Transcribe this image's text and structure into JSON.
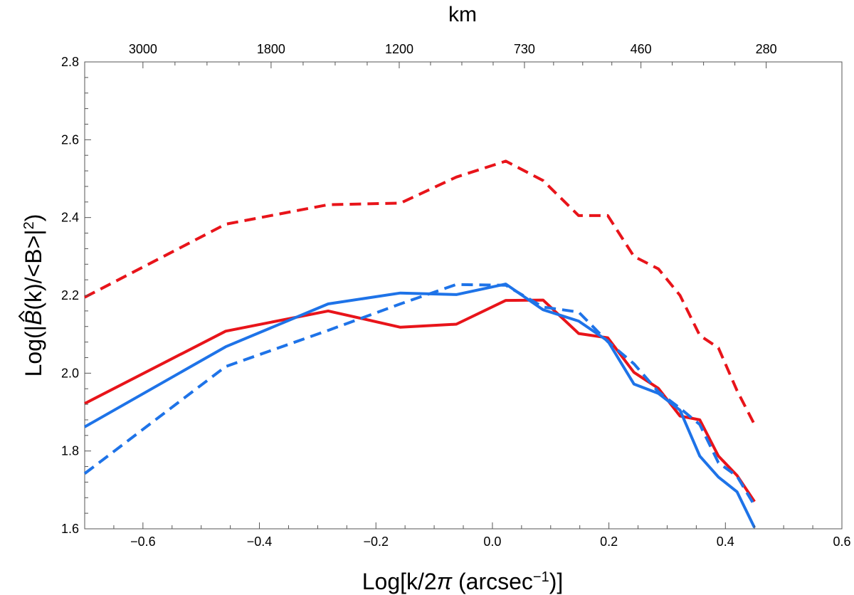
{
  "chart_data": {
    "type": "line",
    "xlabel_parts": {
      "prefix": "Log[k/2",
      "pi": "π",
      "mid": " (arcsec",
      "sup": "−1",
      "suffix": ")]"
    },
    "ylabel_parts": {
      "prefix": "Log(|",
      "hat_symbol": "B",
      "mid": "(k)/<B>|",
      "sup": "2",
      "suffix": ")"
    },
    "top_axis_label": "km",
    "xlim": [
      -0.7,
      0.6
    ],
    "ylim": [
      1.6,
      2.8
    ],
    "x_ticks": [
      -0.6,
      -0.4,
      -0.2,
      0.0,
      0.2,
      0.4,
      0.6
    ],
    "x_tick_labels": [
      "−0.6",
      "−0.4",
      "−0.2",
      "0.0",
      "0.2",
      "0.4",
      "0.6"
    ],
    "y_ticks": [
      1.6,
      1.8,
      2.0,
      2.2,
      2.4,
      2.6,
      2.8
    ],
    "y_tick_labels": [
      "1.6",
      "1.8",
      "2.0",
      "2.2",
      "2.4",
      "2.6",
      "2.8"
    ],
    "top_ticks": [
      {
        "label": "3000",
        "x": -0.6
      },
      {
        "label": "1800",
        "x": -0.38
      },
      {
        "label": "1200",
        "x": -0.16
      },
      {
        "label": "730",
        "x": 0.055
      },
      {
        "label": "460",
        "x": 0.255
      },
      {
        "label": "280",
        "x": 0.47
      }
    ],
    "grid": false,
    "series": [
      {
        "color": "#e8141a",
        "dashed": true,
        "points": [
          [
            -0.7,
            2.195
          ],
          [
            -0.458,
            2.383
          ],
          [
            -0.282,
            2.433
          ],
          [
            -0.158,
            2.437
          ],
          [
            -0.062,
            2.504
          ],
          [
            0.023,
            2.545
          ],
          [
            0.087,
            2.495
          ],
          [
            0.148,
            2.405
          ],
          [
            0.198,
            2.405
          ],
          [
            0.243,
            2.3
          ],
          [
            0.285,
            2.268
          ],
          [
            0.322,
            2.2
          ],
          [
            0.356,
            2.097
          ],
          [
            0.388,
            2.065
          ],
          [
            0.42,
            1.955
          ],
          [
            0.45,
            1.868
          ]
        ]
      },
      {
        "color": "#e8141a",
        "dashed": false,
        "points": [
          [
            -0.7,
            1.922
          ],
          [
            -0.458,
            2.108
          ],
          [
            -0.282,
            2.16
          ],
          [
            -0.158,
            2.118
          ],
          [
            -0.062,
            2.126
          ],
          [
            0.023,
            2.187
          ],
          [
            0.087,
            2.188
          ],
          [
            0.148,
            2.102
          ],
          [
            0.198,
            2.091
          ],
          [
            0.243,
            2.002
          ],
          [
            0.285,
            1.961
          ],
          [
            0.322,
            1.89
          ],
          [
            0.356,
            1.88
          ],
          [
            0.388,
            1.787
          ],
          [
            0.42,
            1.737
          ],
          [
            0.45,
            1.67
          ]
        ]
      },
      {
        "color": "#1e73e8",
        "dashed": false,
        "points": [
          [
            -0.7,
            1.862
          ],
          [
            -0.458,
            2.068
          ],
          [
            -0.282,
            2.178
          ],
          [
            -0.158,
            2.206
          ],
          [
            -0.062,
            2.202
          ],
          [
            0.023,
            2.229
          ],
          [
            0.087,
            2.163
          ],
          [
            0.148,
            2.134
          ],
          [
            0.198,
            2.083
          ],
          [
            0.243,
            1.972
          ],
          [
            0.285,
            1.948
          ],
          [
            0.322,
            1.905
          ],
          [
            0.356,
            1.787
          ],
          [
            0.388,
            1.733
          ],
          [
            0.42,
            1.695
          ],
          [
            0.45,
            1.603
          ]
        ]
      },
      {
        "color": "#1e73e8",
        "dashed": true,
        "points": [
          [
            -0.7,
            1.742
          ],
          [
            -0.458,
            2.017
          ],
          [
            -0.282,
            2.11
          ],
          [
            -0.158,
            2.178
          ],
          [
            -0.062,
            2.228
          ],
          [
            0.023,
            2.226
          ],
          [
            0.087,
            2.17
          ],
          [
            0.148,
            2.157
          ],
          [
            0.198,
            2.081
          ],
          [
            0.243,
            2.024
          ],
          [
            0.285,
            1.952
          ],
          [
            0.322,
            1.91
          ],
          [
            0.356,
            1.868
          ],
          [
            0.388,
            1.77
          ],
          [
            0.42,
            1.735
          ],
          [
            0.45,
            1.66
          ]
        ]
      }
    ]
  }
}
